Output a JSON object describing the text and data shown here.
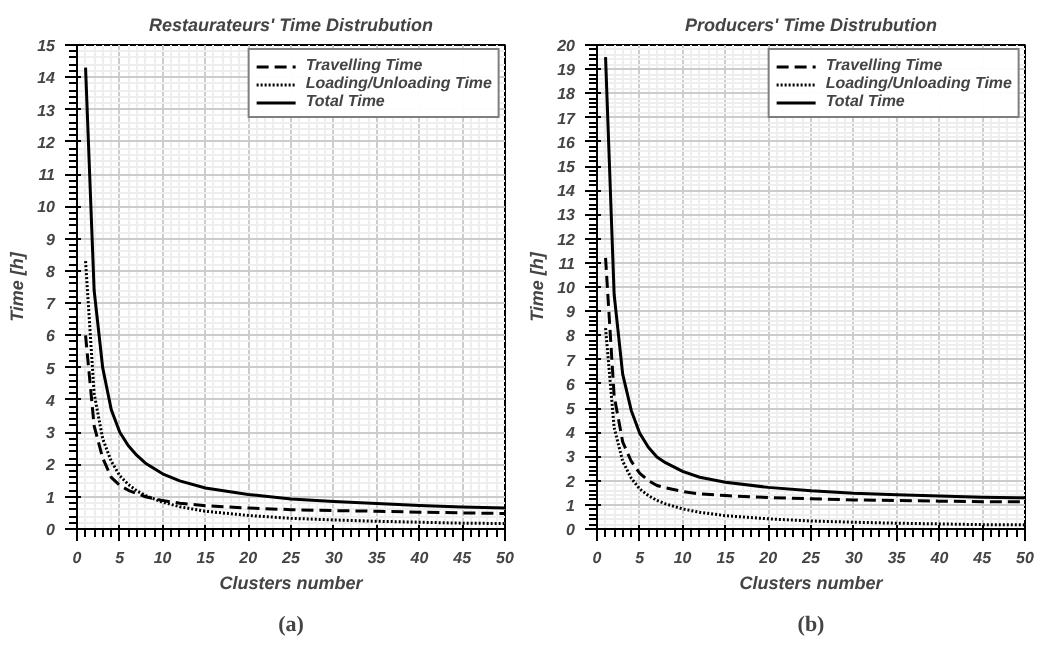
{
  "chart_data": [
    {
      "type": "line",
      "title": "Restaurateurs' Time Distrubution",
      "xlabel": "Clusters number",
      "ylabel": "Time [h]",
      "annotations": [
        "(a)"
      ],
      "xlim": [
        0,
        50
      ],
      "ylim": [
        0,
        15
      ],
      "xticks": [
        0,
        5,
        10,
        15,
        20,
        25,
        30,
        35,
        40,
        45,
        50
      ],
      "yticks": [
        0,
        1,
        2,
        3,
        4,
        5,
        6,
        7,
        8,
        9,
        10,
        11,
        12,
        13,
        14,
        15
      ],
      "grid": true,
      "legend": "top right",
      "x": [
        1,
        2,
        3,
        4,
        5,
        6,
        7,
        8,
        10,
        12,
        15,
        20,
        25,
        30,
        35,
        40,
        45,
        50
      ],
      "series": [
        {
          "name": "Travelling Time",
          "color": "#000000",
          "line_style": "dashed",
          "values": [
            6.0,
            3.2,
            2.2,
            1.6,
            1.35,
            1.2,
            1.1,
            1.0,
            0.88,
            0.8,
            0.72,
            0.65,
            0.6,
            0.57,
            0.55,
            0.52,
            0.5,
            0.48
          ]
        },
        {
          "name": "Loading/Unloading Time",
          "color": "#000000",
          "line_style": "dotted",
          "values": [
            8.3,
            4.2,
            2.8,
            2.1,
            1.65,
            1.38,
            1.18,
            1.04,
            0.83,
            0.69,
            0.55,
            0.42,
            0.33,
            0.28,
            0.24,
            0.21,
            0.18,
            0.17
          ]
        },
        {
          "name": "Total Time",
          "color": "#000000",
          "line_style": "solid",
          "values": [
            14.3,
            7.4,
            5.0,
            3.7,
            3.0,
            2.58,
            2.28,
            2.04,
            1.71,
            1.49,
            1.27,
            1.07,
            0.93,
            0.85,
            0.79,
            0.73,
            0.68,
            0.65
          ]
        }
      ]
    },
    {
      "type": "line",
      "title": "Producers' Time Distrubution",
      "xlabel": "Clusters number",
      "ylabel": "Time [h]",
      "annotations": [
        "(b)"
      ],
      "xlim": [
        0,
        50
      ],
      "ylim": [
        0,
        20
      ],
      "xticks": [
        0,
        5,
        10,
        15,
        20,
        25,
        30,
        35,
        40,
        45,
        50
      ],
      "yticks": [
        0,
        1,
        2,
        3,
        4,
        5,
        6,
        7,
        8,
        9,
        10,
        11,
        12,
        13,
        14,
        15,
        16,
        17,
        18,
        19,
        20
      ],
      "grid": true,
      "legend": "top right",
      "x": [
        1,
        2,
        3,
        4,
        5,
        6,
        7,
        8,
        10,
        12,
        15,
        20,
        25,
        30,
        35,
        40,
        45,
        50
      ],
      "series": [
        {
          "name": "Travelling Time",
          "color": "#000000",
          "line_style": "dashed",
          "values": [
            11.2,
            5.5,
            3.6,
            2.8,
            2.3,
            2.0,
            1.8,
            1.7,
            1.55,
            1.45,
            1.38,
            1.3,
            1.25,
            1.2,
            1.18,
            1.15,
            1.13,
            1.12
          ]
        },
        {
          "name": "Loading/Unloading Time",
          "color": "#000000",
          "line_style": "dotted",
          "values": [
            8.3,
            4.2,
            2.8,
            2.1,
            1.65,
            1.38,
            1.18,
            1.04,
            0.83,
            0.69,
            0.55,
            0.42,
            0.33,
            0.28,
            0.24,
            0.21,
            0.18,
            0.17
          ]
        },
        {
          "name": "Total Time",
          "color": "#000000",
          "line_style": "solid",
          "values": [
            19.5,
            9.7,
            6.4,
            4.9,
            3.95,
            3.38,
            2.98,
            2.74,
            2.38,
            2.14,
            1.93,
            1.72,
            1.58,
            1.48,
            1.42,
            1.36,
            1.31,
            1.29
          ]
        }
      ]
    }
  ]
}
